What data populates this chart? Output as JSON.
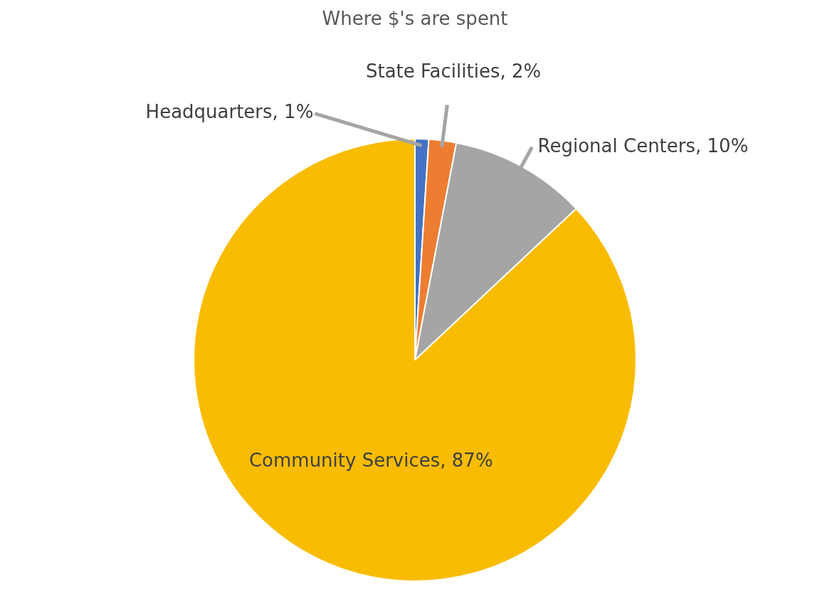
{
  "chart_data": {
    "type": "pie",
    "title": "Where $'s are spent",
    "categories": [
      "Headquarters",
      "State Facilities",
      "Regional Centers",
      "Community Services"
    ],
    "values": [
      1,
      2,
      10,
      87
    ],
    "value_labels": [
      "1%",
      "2%",
      "10%",
      "87%"
    ],
    "colors": [
      "#4472c4",
      "#ed7d31",
      "#a5a5a5",
      "#f9bc00"
    ],
    "legend": false
  }
}
